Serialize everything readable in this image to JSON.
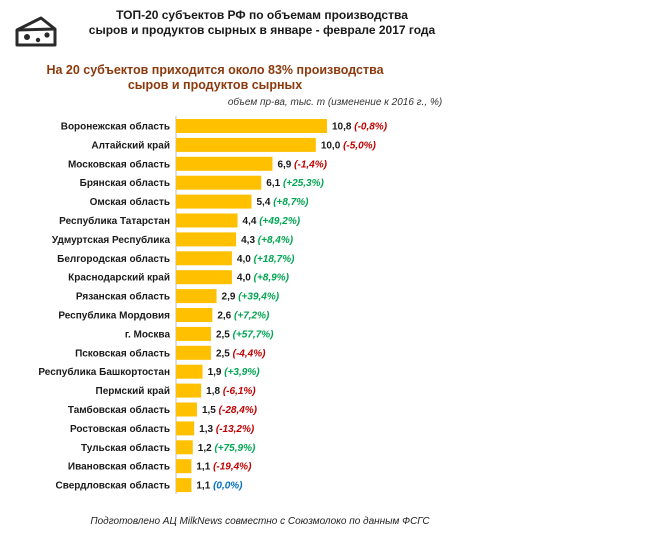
{
  "title_line1": "ТОП-20 субъектов РФ по объемам производства",
  "title_line2": "сыров и продуктов сырных в январе - феврале 2017 года",
  "subtitle_line1": "На 20 субъектов приходится около 83% производства",
  "subtitle_line2": "сыров и продуктов сырных",
  "unit_note": "объем пр-ва, тыс. т  (изменение к 2016 г., %)",
  "footer": "Подготовлено АЦ MilkNews совместно с Союзмолоко по данным ФСГС",
  "logo_icon": "cheese-icon",
  "colors": {
    "bar": "#FFC000",
    "positive": "#00A651",
    "negative": "#C00000",
    "neutral": "#0070C0"
  },
  "chart_data": {
    "type": "bar",
    "orientation": "horizontal",
    "categories": [
      "Воронежская область",
      "Алтайский край",
      "Московская область",
      "Брянская область",
      "Омская область",
      "Республика Татарстан",
      "Удмуртская Республика",
      "Белгородская область",
      "Краснодарский край",
      "Рязанская область",
      "Республика Мордовия",
      "г. Москва",
      "Псковская область",
      "Республика Башкортостан",
      "Пермский край",
      "Тамбовская область",
      "Ростовская область",
      "Тульская область",
      "Ивановская область",
      "Свердловская область"
    ],
    "values": [
      10.8,
      10.0,
      6.9,
      6.1,
      5.4,
      4.4,
      4.3,
      4.0,
      4.0,
      2.9,
      2.6,
      2.5,
      2.5,
      1.9,
      1.8,
      1.5,
      1.3,
      1.2,
      1.1,
      1.1
    ],
    "value_labels": [
      "10,8",
      "10,0",
      "6,9",
      "6,1",
      "5,4",
      "4,4",
      "4,3",
      "4,0",
      "4,0",
      "2,9",
      "2,6",
      "2,5",
      "2,5",
      "1,9",
      "1,8",
      "1,5",
      "1,3",
      "1,2",
      "1,1",
      "1,1"
    ],
    "change_pct": [
      -0.8,
      -5.0,
      -1.4,
      25.3,
      8.7,
      49.2,
      8.4,
      18.7,
      8.9,
      39.4,
      7.2,
      57.7,
      -4.4,
      3.9,
      -6.1,
      -28.4,
      -13.2,
      75.9,
      -19.4,
      0.0
    ],
    "change_labels": [
      "(-0,8%)",
      "(-5,0%)",
      "(-1,4%)",
      "(+25,3%)",
      "(+8,7%)",
      "(+49,2%)",
      "(+8,4%)",
      "(+18,7%)",
      "(+8,9%)",
      "(+39,4%)",
      "(+7,2%)",
      "(+57,7%)",
      "(-4,4%)",
      "(+3,9%)",
      "(-6,1%)",
      "(-28,4%)",
      "(-13,2%)",
      "(+75,9%)",
      "(-19,4%)",
      "(0,0%)"
    ],
    "xlim": [
      0,
      10.8
    ],
    "grid": false,
    "legend": "none"
  }
}
